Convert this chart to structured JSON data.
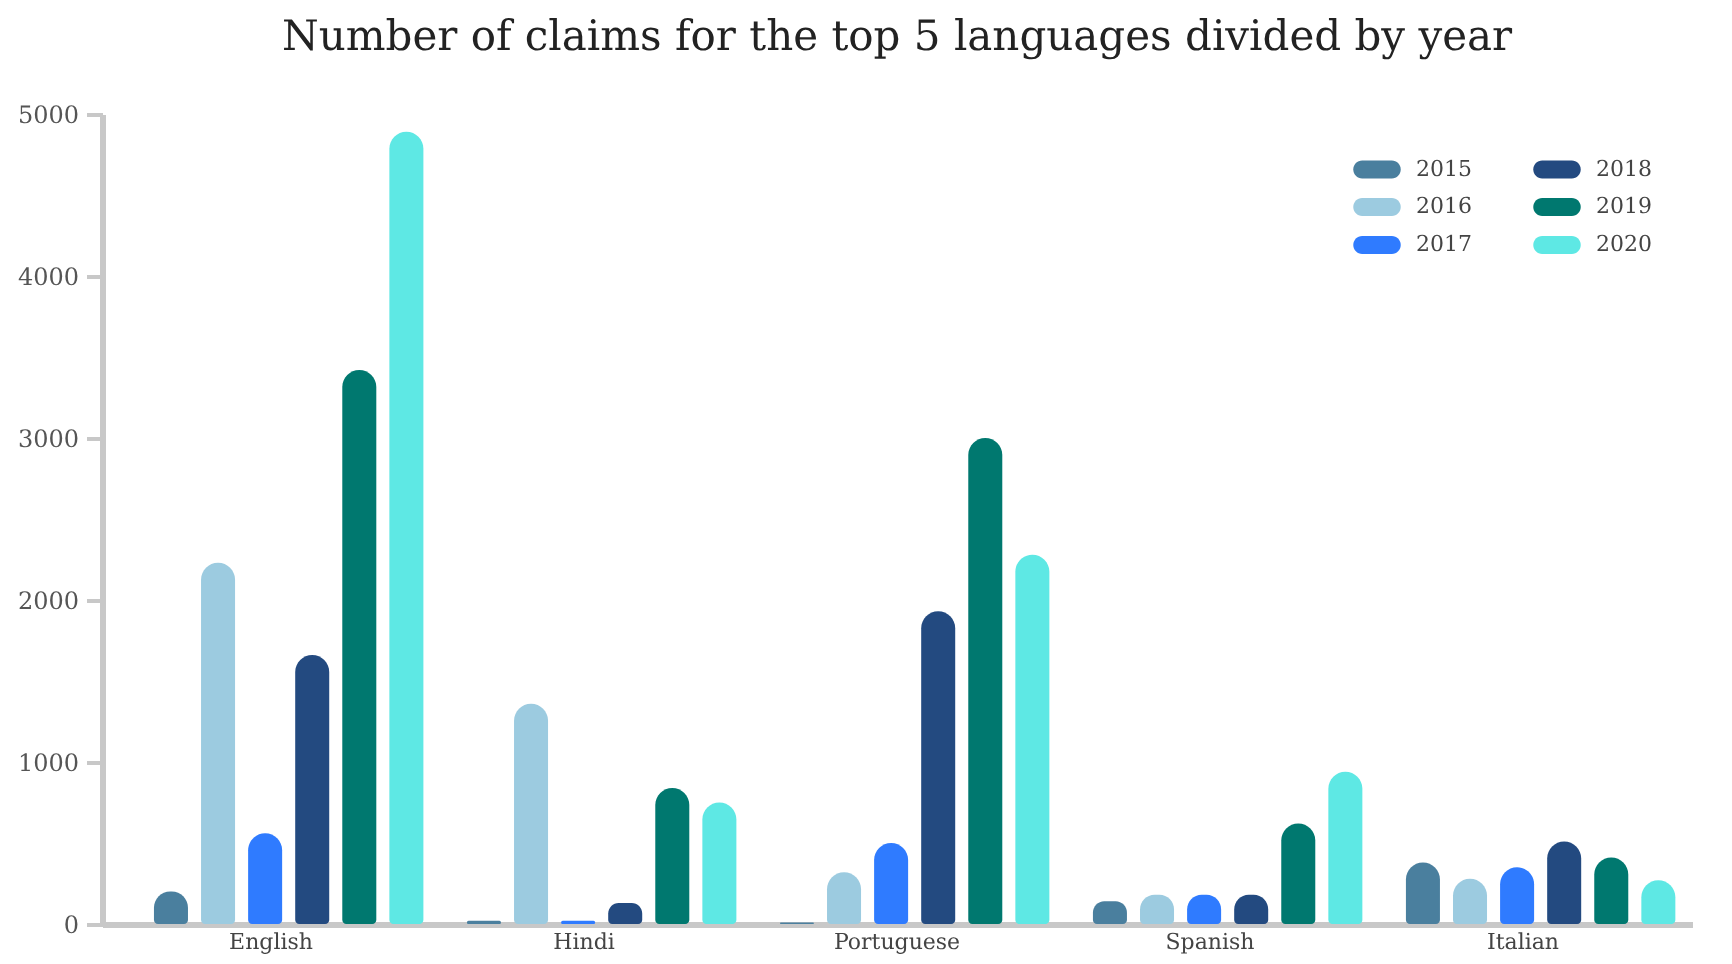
{
  "chart_data": {
    "type": "bar",
    "title": "Number of claims for the top 5 languages divided by year",
    "categories": [
      "English",
      "Hindi",
      "Portuguese",
      "Spanish",
      "Italian"
    ],
    "ylim": [
      0,
      5000
    ],
    "yticks": [
      0,
      1000,
      2000,
      3000,
      4000,
      5000
    ],
    "grid": false,
    "legend": "top right",
    "series": [
      {
        "name": "2015",
        "color": "#4a7f9e",
        "values": [
          200,
          20,
          10,
          140,
          380
        ]
      },
      {
        "name": "2016",
        "color": "#9ccbe0",
        "values": [
          2230,
          1360,
          320,
          180,
          280
        ]
      },
      {
        "name": "2017",
        "color": "#2f7bff",
        "values": [
          560,
          20,
          500,
          180,
          350
        ]
      },
      {
        "name": "2018",
        "color": "#234a80",
        "values": [
          1660,
          130,
          1930,
          180,
          510
        ]
      },
      {
        "name": "2019",
        "color": "#00786f",
        "values": [
          3420,
          840,
          3000,
          620,
          410
        ]
      },
      {
        "name": "2020",
        "color": "#5ee8e4",
        "values": [
          4890,
          750,
          2280,
          940,
          270
        ]
      }
    ]
  }
}
